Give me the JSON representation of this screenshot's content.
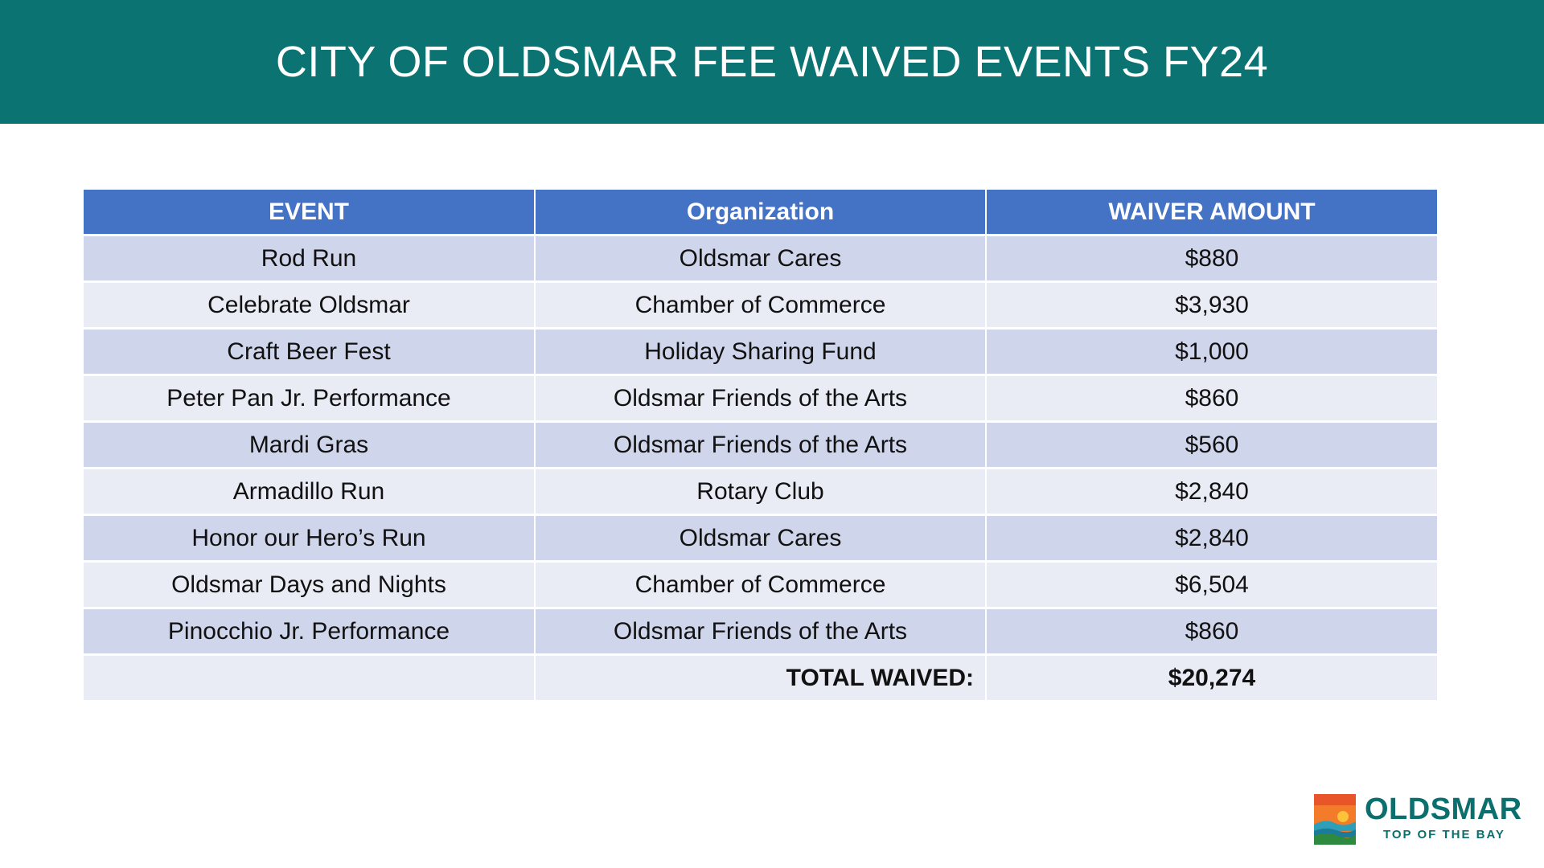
{
  "slide": {
    "title": "CITY OF OLDSMAR FEE WAIVED EVENTS FY24"
  },
  "table": {
    "headers": [
      "EVENT",
      "Organization",
      "WAIVER AMOUNT"
    ],
    "rows": [
      {
        "event": "Rod Run",
        "organization": "Oldsmar Cares",
        "amount": "$880"
      },
      {
        "event": "Celebrate Oldsmar",
        "organization": "Chamber of Commerce",
        "amount": "$3,930"
      },
      {
        "event": "Craft Beer Fest",
        "organization": "Holiday Sharing Fund",
        "amount": "$1,000"
      },
      {
        "event": "Peter Pan Jr. Performance",
        "organization": "Oldsmar Friends of the Arts",
        "amount": "$860"
      },
      {
        "event": "Mardi Gras",
        "organization": "Oldsmar Friends of the Arts",
        "amount": "$560"
      },
      {
        "event": "Armadillo Run",
        "organization": "Rotary Club",
        "amount": "$2,840"
      },
      {
        "event": "Honor our Hero’s Run",
        "organization": "Oldsmar Cares",
        "amount": "$2,840"
      },
      {
        "event": "Oldsmar Days and Nights",
        "organization": "Chamber of Commerce",
        "amount": "$6,504"
      },
      {
        "event": "Pinocchio Jr. Performance",
        "organization": "Oldsmar Friends of the Arts",
        "amount": "$860"
      }
    ],
    "total_label": "TOTAL WAIVED:",
    "total_amount": "$20,274"
  },
  "logo": {
    "name": "OLDSMAR",
    "tagline": "TOP OF THE BAY"
  },
  "colors": {
    "title_bar": "#0b7472",
    "header": "#4472c4",
    "row_dark": "#cfd5ea",
    "row_light": "#e9ebf5",
    "logo_text": "#0b6f6d"
  }
}
